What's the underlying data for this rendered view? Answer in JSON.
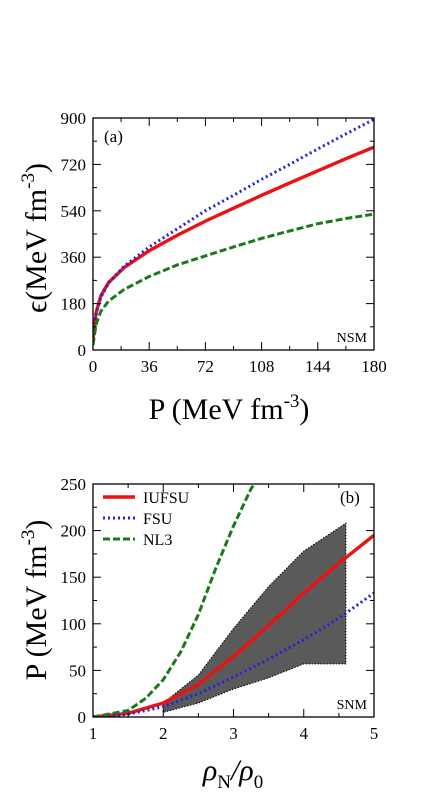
{
  "chart_data": [
    {
      "type": "line",
      "panel_label": "(a)",
      "corner_label": "NSM",
      "xlabel": "P (MeV fm",
      "xlabel_sup": "-3",
      "xlabel_tail": ")",
      "ylabel": "ϵ(MeV fm",
      "ylabel_sup": "-3",
      "ylabel_tail": ")",
      "xlim": [
        0,
        180
      ],
      "ylim": [
        0,
        900
      ],
      "xticks": [
        0,
        36,
        72,
        108,
        144,
        180
      ],
      "yticks": [
        0,
        180,
        360,
        540,
        720,
        900
      ],
      "series": [
        {
          "key": "IUFSU",
          "color": "#ee1111",
          "dash": "",
          "x": [
            0,
            2,
            5,
            10,
            20,
            36,
            54,
            72,
            90,
            108,
            126,
            144,
            162,
            180
          ],
          "y": [
            40,
            145,
            210,
            262,
            320,
            385,
            445,
            500,
            550,
            600,
            648,
            695,
            742,
            787
          ]
        },
        {
          "key": "FSU",
          "color": "#2222dd",
          "dash": "2,3",
          "x": [
            0,
            2,
            5,
            10,
            20,
            36,
            54,
            72,
            90,
            108,
            126,
            144,
            162,
            180
          ],
          "y": [
            40,
            140,
            205,
            260,
            325,
            400,
            470,
            540,
            600,
            662,
            720,
            780,
            838,
            895
          ]
        },
        {
          "key": "NL3",
          "color": "#1a7a1a",
          "dash": "7,3",
          "x": [
            0,
            2,
            5,
            10,
            20,
            36,
            54,
            72,
            90,
            108,
            126,
            144,
            162,
            180
          ],
          "y": [
            20,
            100,
            150,
            190,
            235,
            285,
            330,
            365,
            400,
            433,
            462,
            490,
            510,
            527
          ]
        }
      ]
    },
    {
      "type": "line",
      "panel_label": "(b)",
      "corner_label": "SNM",
      "xlabel": "ρ",
      "xlabel_sub1": "N",
      "xlabel_mid": "/ρ",
      "xlabel_sub2": "0",
      "ylabel": "P (MeV fm",
      "ylabel_sup": "-3",
      "ylabel_tail": ")",
      "xlim": [
        1,
        5
      ],
      "ylim": [
        0,
        250
      ],
      "xticks": [
        1,
        2,
        3,
        4,
        5
      ],
      "yticks": [
        0,
        50,
        100,
        150,
        200,
        250
      ],
      "legend": [
        {
          "key": "IUFSU",
          "label": "IUFSU"
        },
        {
          "key": "FSU",
          "label": "FSU"
        },
        {
          "key": "NL3",
          "label": "NL3"
        }
      ],
      "series": [
        {
          "key": "IUFSU",
          "color": "#ee1111",
          "dash": "",
          "x": [
            1,
            1.5,
            2,
            2.5,
            3,
            3.5,
            4,
            4.5,
            5
          ],
          "y": [
            0,
            4,
            15,
            35,
            65,
            98,
            133,
            165,
            195
          ]
        },
        {
          "key": "FSU",
          "color": "#2222dd",
          "dash": "2,3",
          "x": [
            1,
            1.5,
            2,
            2.5,
            3,
            3.5,
            4,
            4.5,
            5
          ],
          "y": [
            0,
            3,
            11,
            25,
            43,
            62,
            83,
            106,
            133
          ]
        },
        {
          "key": "NL3",
          "color": "#1a7a1a",
          "dash": "7,3",
          "x": [
            1,
            1.5,
            1.75,
            2,
            2.25,
            2.5,
            2.75,
            3,
            3.25,
            3.35
          ],
          "y": [
            0,
            7,
            20,
            40,
            70,
            110,
            160,
            205,
            245,
            255
          ]
        }
      ],
      "band": {
        "color": "#5a5a5a",
        "upper": {
          "x": [
            2,
            2.5,
            3,
            3.5,
            4,
            4.6
          ],
          "y": [
            15,
            45,
            95,
            140,
            178,
            208
          ]
        },
        "lower": {
          "x": [
            2,
            2.5,
            3,
            3.5,
            4,
            4.6
          ],
          "y": [
            5,
            15,
            30,
            42,
            57,
            57
          ]
        }
      }
    }
  ]
}
